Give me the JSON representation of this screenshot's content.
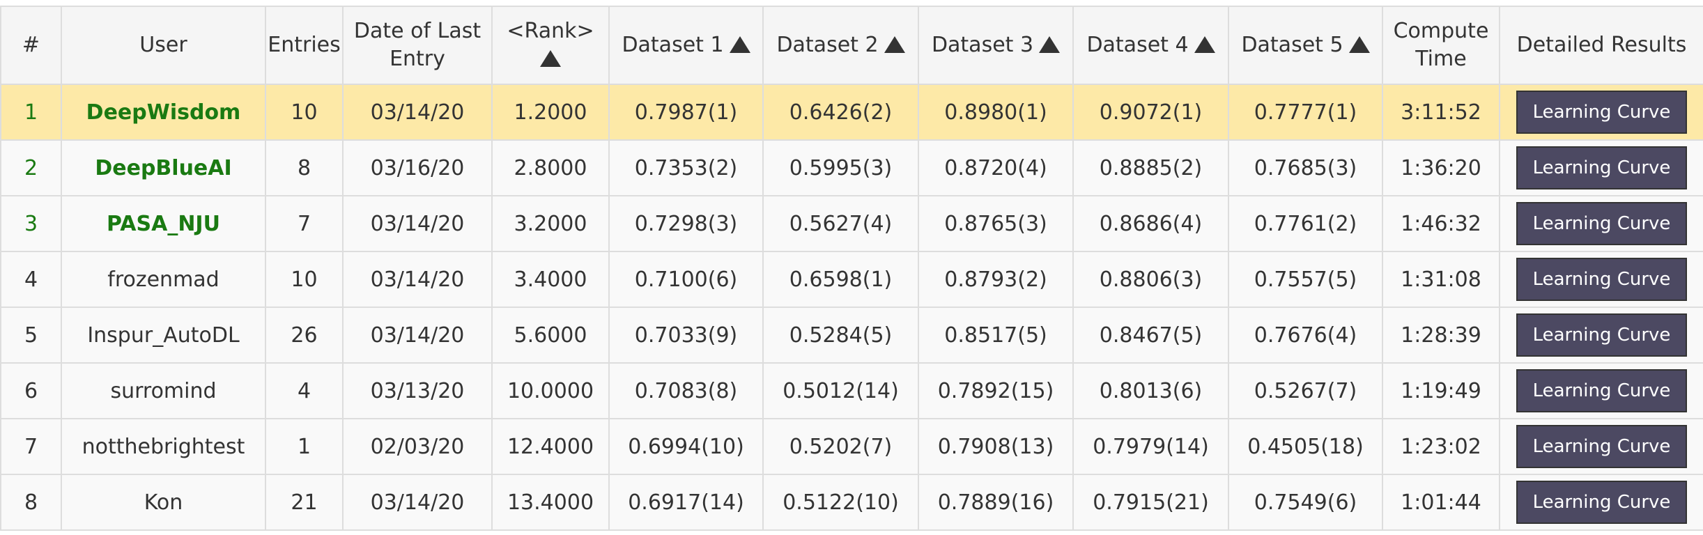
{
  "table": {
    "headers": [
      "#",
      "User",
      "Entries",
      "Date of Last Entry",
      "<Rank>",
      "Dataset 1",
      "Dataset 2",
      "Dataset 3",
      "Dataset 4",
      "Dataset 5",
      "Compute Time",
      "Detailed Results"
    ],
    "rows": [
      [
        "1",
        "DeepWisdom",
        "10",
        "03/14/20",
        "1.2000",
        "0.7987(1)",
        "0.6426(2)",
        "0.8980(1)",
        "0.9072(1)",
        "0.7777(1)",
        "3:11:52",
        "Learning Curve"
      ],
      [
        "2",
        "DeepBlueAI",
        "8",
        "03/16/20",
        "2.8000",
        "0.7353(2)",
        "0.5995(3)",
        "0.8720(4)",
        "0.8885(2)",
        "0.7685(3)",
        "1:36:20",
        "Learning Curve"
      ],
      [
        "3",
        "PASA_NJU",
        "7",
        "03/14/20",
        "3.2000",
        "0.7298(3)",
        "0.5627(4)",
        "0.8765(3)",
        "0.8686(4)",
        "0.7761(2)",
        "1:46:32",
        "Learning Curve"
      ],
      [
        "4",
        "frozenmad",
        "10",
        "03/14/20",
        "3.4000",
        "0.7100(6)",
        "0.6598(1)",
        "0.8793(2)",
        "0.8806(3)",
        "0.7557(5)",
        "1:31:08",
        "Learning Curve"
      ],
      [
        "5",
        "Inspur_AutoDL",
        "26",
        "03/14/20",
        "5.6000",
        "0.7033(9)",
        "0.5284(5)",
        "0.8517(5)",
        "0.8467(5)",
        "0.7676(4)",
        "1:28:39",
        "Learning Curve"
      ],
      [
        "6",
        "surromind",
        "4",
        "03/13/20",
        "10.0000",
        "0.7083(8)",
        "0.5012(14)",
        "0.7892(15)",
        "0.8013(6)",
        "0.5267(7)",
        "1:19:49",
        "Learning Curve"
      ],
      [
        "7",
        "notthebrightest",
        "1",
        "02/03/20",
        "12.4000",
        "0.6994(10)",
        "0.5202(7)",
        "0.7908(13)",
        "0.7979(14)",
        "0.4505(18)",
        "1:23:02",
        "Learning Curve"
      ],
      [
        "8",
        "Kon",
        "21",
        "03/14/20",
        "13.4000",
        "0.6917(14)",
        "0.5122(10)",
        "0.7889(16)",
        "0.7915(21)",
        "0.7549(6)",
        "1:01:44",
        "Learning Curve"
      ]
    ]
  }
}
